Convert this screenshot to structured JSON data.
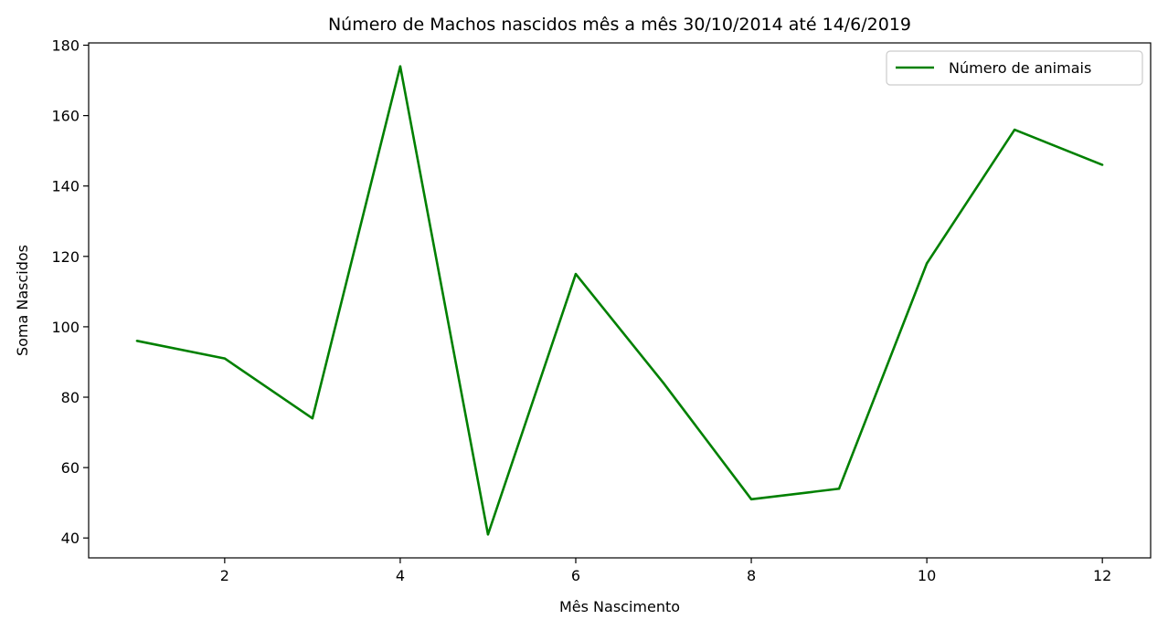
{
  "chart_data": {
    "type": "line",
    "title": "Número de Machos nascidos mês a mês 30/10/2014 até 14/6/2019",
    "xlabel": "Mês Nascimento",
    "ylabel": "Soma Nascidos",
    "x": [
      1,
      2,
      3,
      4,
      5,
      6,
      7,
      8,
      9,
      10,
      11,
      12
    ],
    "series": [
      {
        "name": "Número de animais",
        "color": "#008000",
        "values": [
          96,
          91,
          74,
          174,
          41,
          115,
          84,
          51,
          54,
          118,
          156,
          146
        ]
      }
    ],
    "xlim": [
      0.45,
      12.55
    ],
    "ylim": [
      34.35,
      180.65
    ],
    "xticks": [
      2,
      4,
      6,
      8,
      10,
      12
    ],
    "yticks": [
      40,
      60,
      80,
      100,
      120,
      140,
      160,
      180
    ],
    "grid": false,
    "legend_position": "upper-right"
  }
}
